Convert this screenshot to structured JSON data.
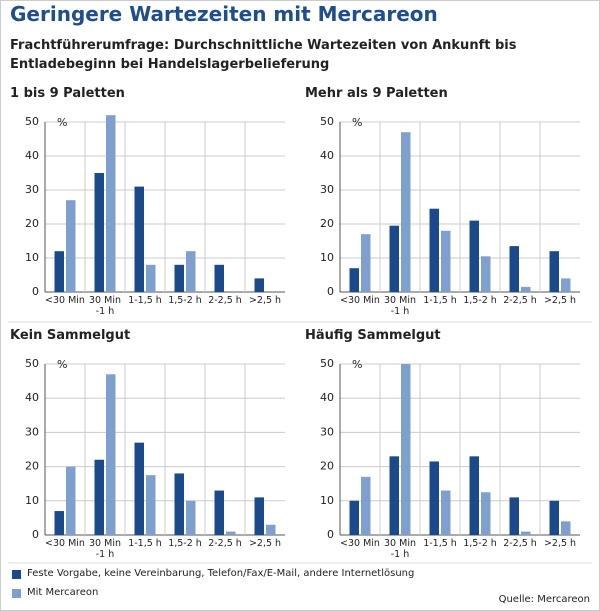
{
  "title": "Geringere Wartezeiten mit Mercareon",
  "subtitle": "Frachtführerumfrage: Durchschnittliche Wartezeiten von Ankunft bis Entladebeginn bei Handelslagerbelieferung",
  "source": "Quelle: Mercareon",
  "chart_data": [
    {
      "type": "bar",
      "title": "1 bis 9 Paletten",
      "y_unit": "%",
      "categories": [
        "<30 Min",
        "30 Min\n-1 h",
        "1-1,5 h",
        "1,5-2 h",
        "2-2,5 h",
        ">2,5 h"
      ],
      "series": [
        {
          "name": "Feste Vorgabe, keine Vereinbarung, Telefon/Fax/E-Mail, andere Internetlösung",
          "color": "#1b4a8a",
          "values": [
            12,
            35,
            31,
            8,
            8,
            4
          ]
        },
        {
          "name": "Mit Mercareon",
          "color": "#7f9fcf",
          "values": [
            27,
            52,
            8,
            12,
            0,
            0
          ]
        }
      ],
      "ylim": [
        0,
        50
      ],
      "yticks": [
        0,
        10,
        20,
        30,
        40,
        50
      ],
      "grid": true
    },
    {
      "type": "bar",
      "title": "Mehr als 9 Paletten",
      "y_unit": "%",
      "categories": [
        "<30 Min",
        "30 Min\n-1 h",
        "1-1,5 h",
        "1,5-2 h",
        "2-2,5 h",
        ">2,5 h"
      ],
      "series": [
        {
          "name": "Feste Vorgabe, keine Vereinbarung, Telefon/Fax/E-Mail, andere Internetlösung",
          "color": "#1b4a8a",
          "values": [
            7,
            19.5,
            24.5,
            21,
            13.5,
            12
          ]
        },
        {
          "name": "Mit Mercareon",
          "color": "#7f9fcf",
          "values": [
            17,
            47,
            18,
            10.5,
            1.5,
            4
          ]
        }
      ],
      "ylim": [
        0,
        50
      ],
      "yticks": [
        0,
        10,
        20,
        30,
        40,
        50
      ],
      "grid": true
    },
    {
      "type": "bar",
      "title": "Kein Sammelgut",
      "y_unit": "%",
      "categories": [
        "<30 Min",
        "30 Min\n-1 h",
        "1-1,5 h",
        "1,5-2 h",
        "2-2,5 h",
        ">2,5 h"
      ],
      "series": [
        {
          "name": "Feste Vorgabe, keine Vereinbarung, Telefon/Fax/E-Mail, andere Internetlösung",
          "color": "#1b4a8a",
          "values": [
            7,
            22,
            27,
            18,
            13,
            11
          ]
        },
        {
          "name": "Mit Mercareon",
          "color": "#7f9fcf",
          "values": [
            20,
            47,
            17.5,
            10,
            1,
            3
          ]
        }
      ],
      "ylim": [
        0,
        50
      ],
      "yticks": [
        0,
        10,
        20,
        30,
        40,
        50
      ],
      "grid": true
    },
    {
      "type": "bar",
      "title": "Häufig Sammelgut",
      "y_unit": "%",
      "categories": [
        "<30 Min",
        "30 Min\n-1 h",
        "1-1,5 h",
        "1,5-2 h",
        "2-2,5 h",
        ">2,5 h"
      ],
      "series": [
        {
          "name": "Feste Vorgabe, keine Vereinbarung, Telefon/Fax/E-Mail, andere Internetlösung",
          "color": "#1b4a8a",
          "values": [
            10,
            23,
            21.5,
            23,
            11,
            10
          ]
        },
        {
          "name": "Mit Mercareon",
          "color": "#7f9fcf",
          "values": [
            17,
            50,
            13,
            12.5,
            1,
            4
          ]
        }
      ],
      "ylim": [
        0,
        50
      ],
      "yticks": [
        0,
        10,
        20,
        30,
        40,
        50
      ],
      "grid": true
    }
  ]
}
